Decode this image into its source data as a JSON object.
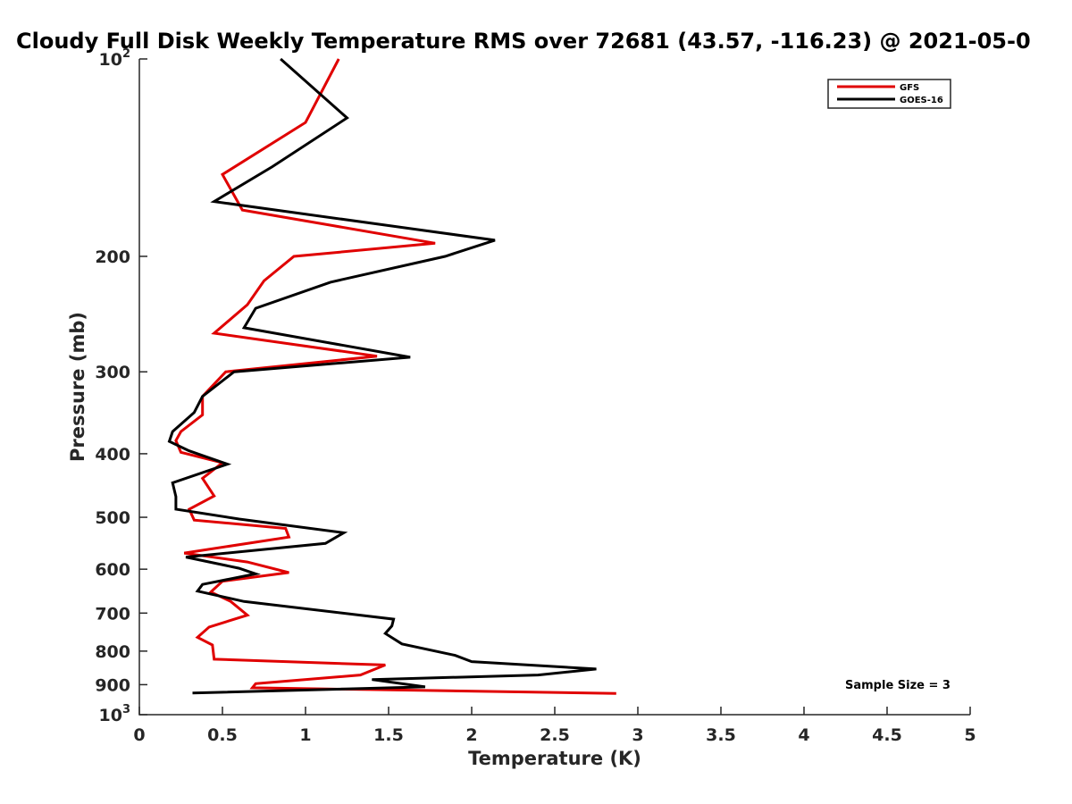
{
  "chart_data": {
    "type": "line",
    "title": "Cloudy Full Disk Weekly Temperature RMS over 72681 (43.57, -116.23) @ 2021-05-0",
    "xlabel": "Temperature (K)",
    "ylabel": "Pressure (mb)",
    "xlim": [
      0,
      5
    ],
    "ylim": [
      100,
      1000
    ],
    "y_scale": "log",
    "y_reversed": true,
    "grid": false,
    "legend_position": "top-right",
    "x_ticks": [
      0,
      0.5,
      1,
      1.5,
      2,
      2.5,
      3,
      3.5,
      4,
      4.5,
      5
    ],
    "x_tick_labels": [
      "0",
      "0.5",
      "1",
      "1.5",
      "2",
      "2.5",
      "3",
      "3.5",
      "4",
      "4.5",
      "5"
    ],
    "y_ticks": [
      100,
      200,
      300,
      400,
      500,
      600,
      700,
      800,
      900,
      1000
    ],
    "y_tick_labels": [
      {
        "base": "10",
        "exp": "2"
      },
      {
        "base": "200"
      },
      {
        "base": "300"
      },
      {
        "base": "400"
      },
      {
        "base": "500"
      },
      {
        "base": "600"
      },
      {
        "base": "700"
      },
      {
        "base": "800"
      },
      {
        "base": "900"
      },
      {
        "base": "10",
        "exp": "3"
      }
    ],
    "annotation": "Sample Size = 3",
    "series": [
      {
        "name": "GFS",
        "color": "#e00000",
        "points": [
          [
            1.2,
            100
          ],
          [
            1.0,
            125
          ],
          [
            0.5,
            150
          ],
          [
            0.62,
            170
          ],
          [
            1.78,
            191
          ],
          [
            0.93,
            200
          ],
          [
            0.75,
            218
          ],
          [
            0.65,
            237
          ],
          [
            0.45,
            262
          ],
          [
            1.43,
            284
          ],
          [
            0.52,
            300
          ],
          [
            0.38,
            327
          ],
          [
            0.38,
            349
          ],
          [
            0.25,
            370
          ],
          [
            0.22,
            382
          ],
          [
            0.25,
            398
          ],
          [
            0.5,
            413
          ],
          [
            0.38,
            436
          ],
          [
            0.45,
            464
          ],
          [
            0.3,
            486
          ],
          [
            0.33,
            505
          ],
          [
            0.88,
            520
          ],
          [
            0.9,
            536
          ],
          [
            0.27,
            567
          ],
          [
            0.65,
            585
          ],
          [
            0.9,
            607
          ],
          [
            0.5,
            626
          ],
          [
            0.43,
            650
          ],
          [
            0.55,
            672
          ],
          [
            0.65,
            705
          ],
          [
            0.42,
            735
          ],
          [
            0.35,
            762
          ],
          [
            0.44,
            783
          ],
          [
            0.45,
            823
          ],
          [
            1.48,
            840
          ],
          [
            1.33,
            870
          ],
          [
            0.7,
            897
          ],
          [
            0.68,
            910
          ],
          [
            2.87,
            928
          ]
        ]
      },
      {
        "name": "GOES-16",
        "color": "#000000",
        "points": [
          [
            0.85,
            100
          ],
          [
            1.25,
            123
          ],
          [
            0.8,
            146
          ],
          [
            0.45,
            165
          ],
          [
            2.14,
            189
          ],
          [
            1.84,
            200
          ],
          [
            1.15,
            219
          ],
          [
            0.7,
            240
          ],
          [
            0.63,
            257
          ],
          [
            1.63,
            285
          ],
          [
            0.57,
            300
          ],
          [
            0.38,
            327
          ],
          [
            0.33,
            346
          ],
          [
            0.2,
            370
          ],
          [
            0.18,
            383
          ],
          [
            0.3,
            396
          ],
          [
            0.53,
            415
          ],
          [
            0.2,
            443
          ],
          [
            0.22,
            465
          ],
          [
            0.22,
            486
          ],
          [
            0.6,
            503
          ],
          [
            1.23,
            528
          ],
          [
            1.12,
            548
          ],
          [
            0.28,
            575
          ],
          [
            0.6,
            598
          ],
          [
            0.7,
            610
          ],
          [
            0.38,
            633
          ],
          [
            0.35,
            648
          ],
          [
            0.63,
            672
          ],
          [
            1.53,
            715
          ],
          [
            1.52,
            732
          ],
          [
            1.48,
            752
          ],
          [
            1.58,
            780
          ],
          [
            1.9,
            812
          ],
          [
            2.0,
            830
          ],
          [
            2.75,
            852
          ],
          [
            2.4,
            870
          ],
          [
            1.4,
            884
          ],
          [
            1.72,
            907
          ],
          [
            0.32,
            927
          ]
        ]
      }
    ]
  }
}
